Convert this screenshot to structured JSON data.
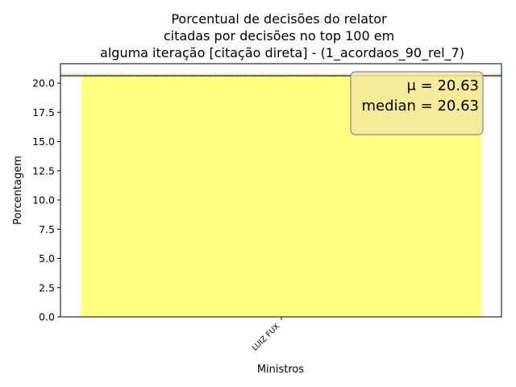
{
  "chart_data": {
    "type": "bar",
    "title_lines": [
      "Porcentual de decisões do relator",
      "citadas por decisões no top 100 em",
      "alguma iteração [citação direta] - (1_acordaos_90_rel_7)"
    ],
    "xlabel": "Ministros",
    "ylabel": "Porcentagem",
    "categories": [
      "LUIZ FUX"
    ],
    "values": [
      20.63
    ],
    "ylim": [
      0,
      21.66
    ],
    "yticks": [
      "0.0",
      "2.5",
      "5.0",
      "7.5",
      "10.0",
      "12.5",
      "15.0",
      "17.5",
      "20.0"
    ],
    "mean_line": 20.63,
    "median_line": 20.63,
    "stats_box": {
      "mean_text": "μ = 20.63",
      "median_text": "median = 20.63",
      "position": "top-right"
    },
    "colors": {
      "bar": "#ffff80",
      "mean_line": "#2ca02c",
      "median_line": "#d62728",
      "box_fill": "#f5e79e",
      "box_edge": "#888888"
    },
    "grid": false
  }
}
